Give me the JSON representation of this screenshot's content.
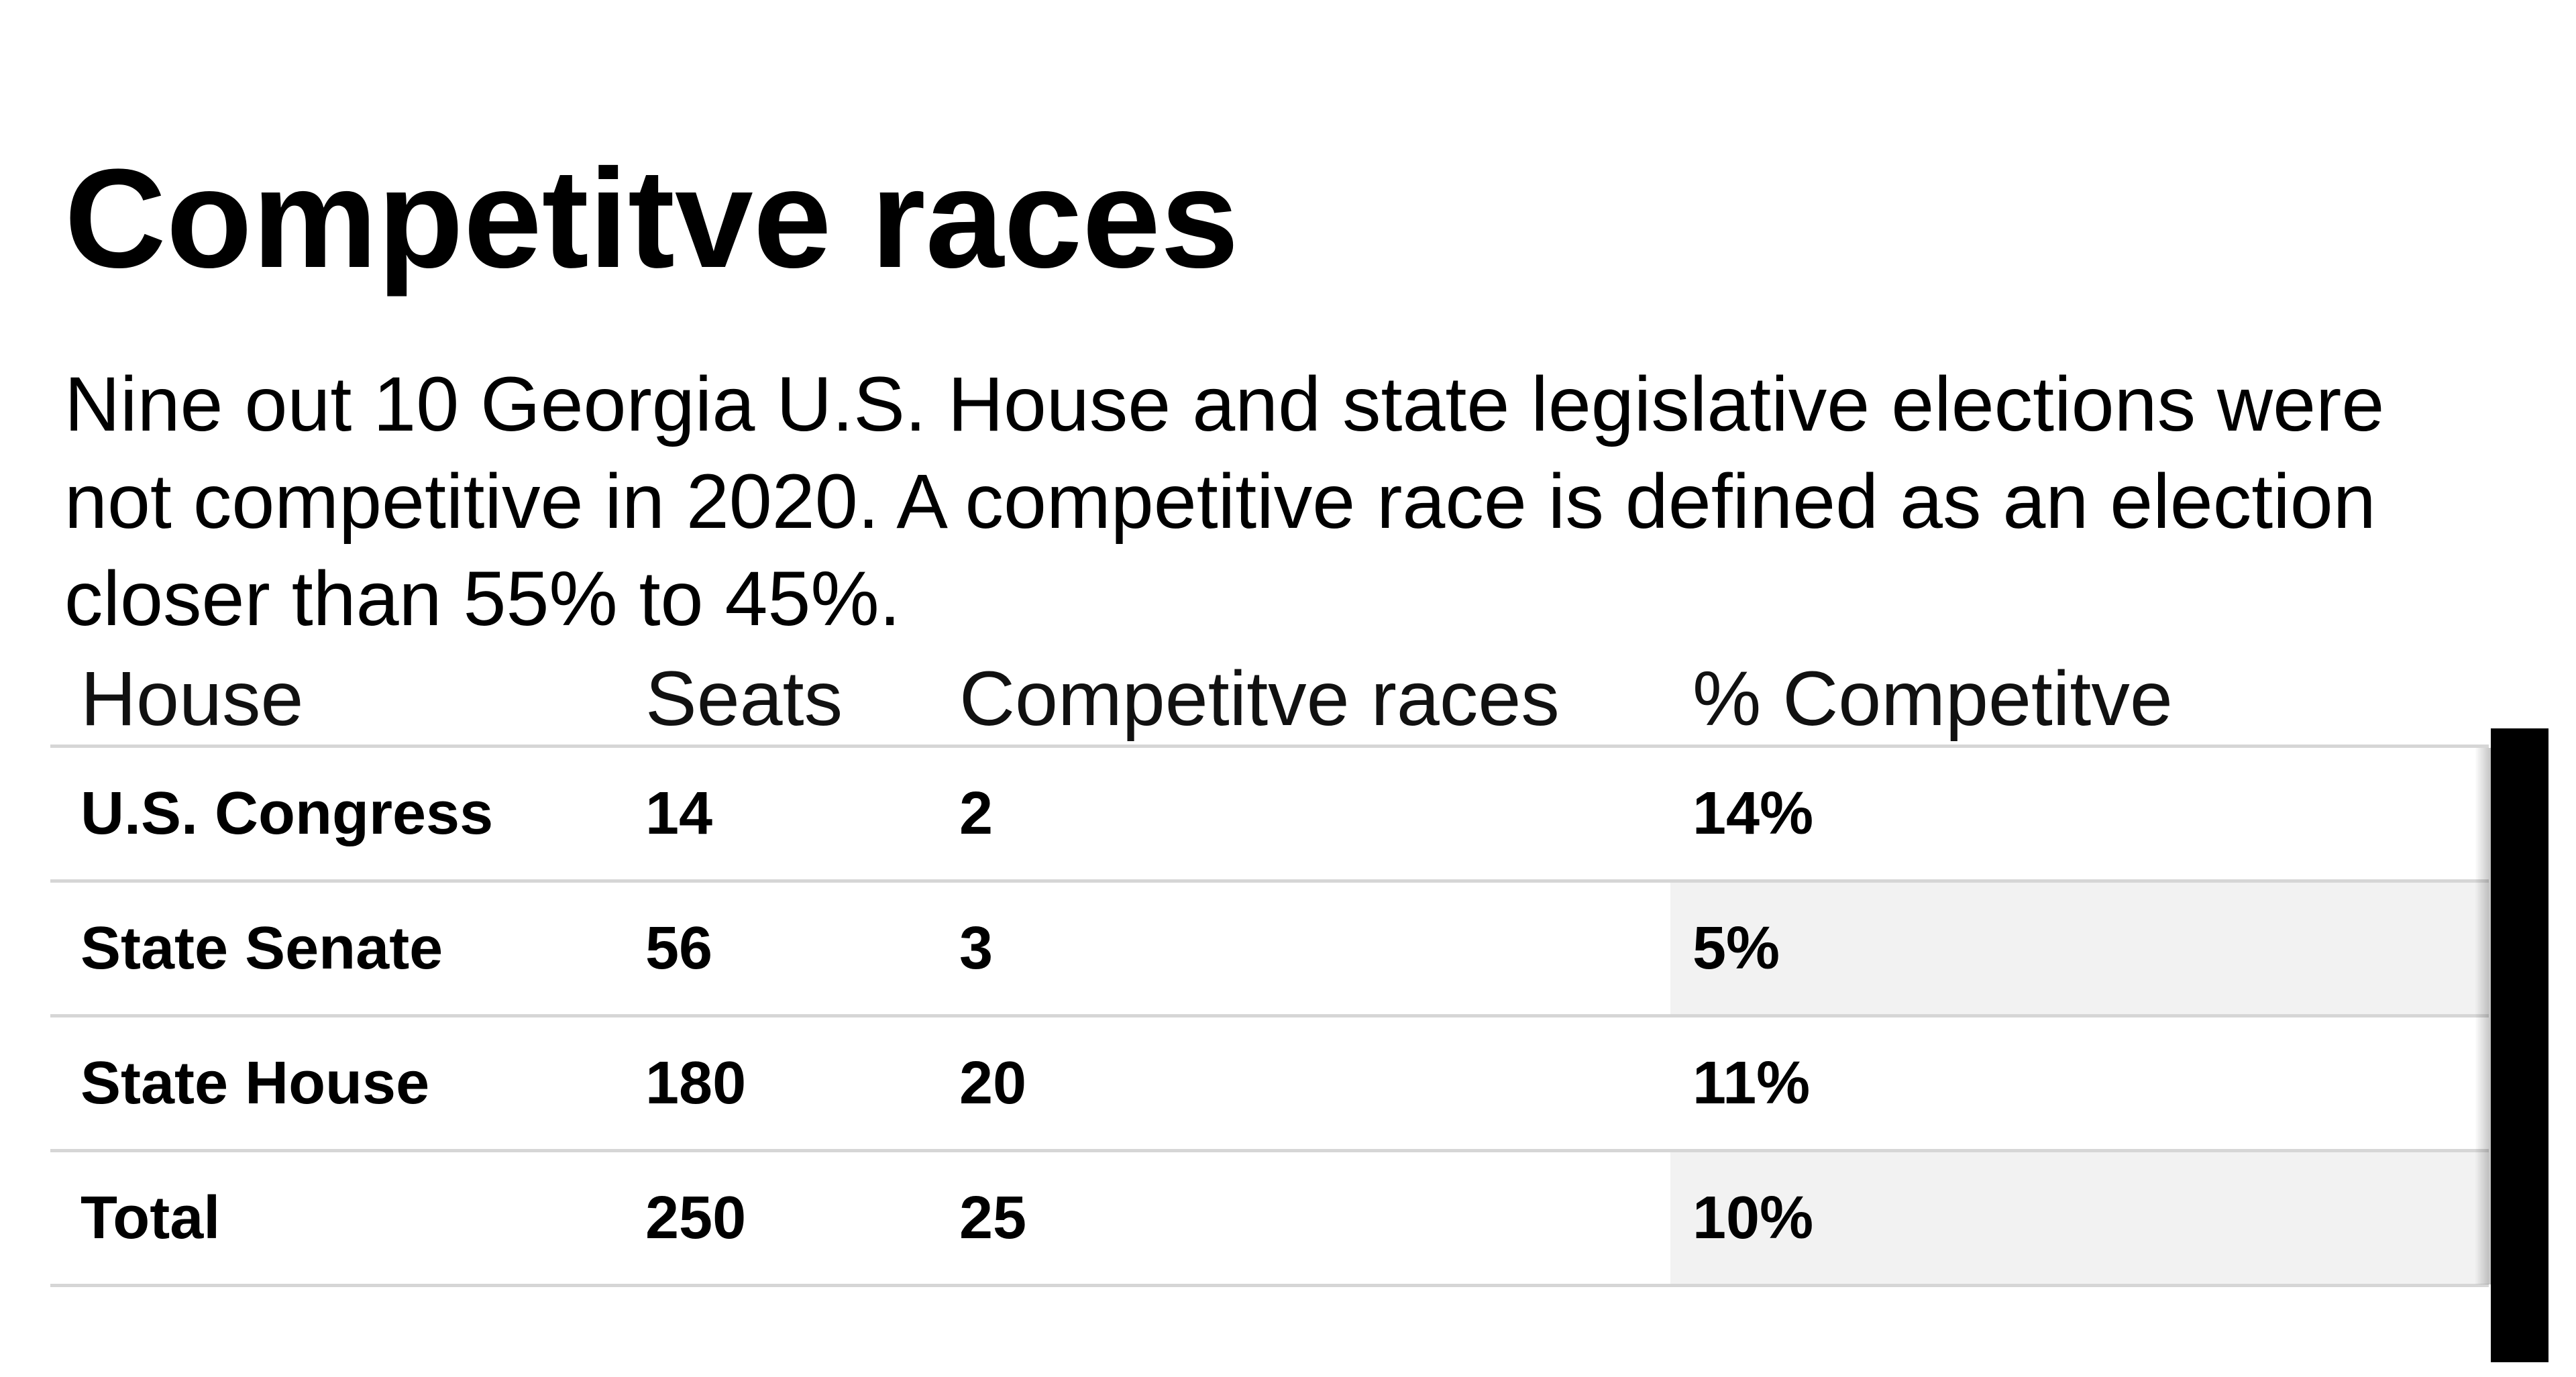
{
  "page": {
    "background": "#ffffff"
  },
  "title": "Competitve races",
  "subtitle": "Nine out 10 Georgia U.S. House and state legislative elections were\nnot competitive in 2020. A competitive race is defined as an election\ncloser than 55% to 45%.",
  "table": {
    "columns": [
      "House",
      "Seats",
      "Competitve races",
      "% Competitve"
    ],
    "rows": [
      {
        "house": "U.S. Congress",
        "seats": "14",
        "competitive_races": "2",
        "pct_competitive": "14%",
        "pct_cell_shaded": false
      },
      {
        "house": "State Senate",
        "seats": "56",
        "competitive_races": "3",
        "pct_competitive": "5%",
        "pct_cell_shaded": true
      },
      {
        "house": "State House",
        "seats": "180",
        "competitive_races": "20",
        "pct_competitive": "11%",
        "pct_cell_shaded": false
      },
      {
        "house": "Total",
        "seats": "250",
        "competitive_races": "25",
        "pct_competitive": "10%",
        "pct_cell_shaded": true
      }
    ]
  },
  "chart_data": {
    "type": "table",
    "title": "Competitve races",
    "subtitle": "Nine out 10 Georgia U.S. House and state legislative elections were not competitive in 2020. A competitive race is defined as an election closer than 55% to 45%.",
    "columns": [
      "House",
      "Seats",
      "Competitve races",
      "% Competitve"
    ],
    "rows": [
      [
        "U.S. Congress",
        14,
        2,
        "14%"
      ],
      [
        "State Senate",
        56,
        3,
        "5%"
      ],
      [
        "State House",
        180,
        20,
        "11%"
      ],
      [
        "Total",
        250,
        25,
        "10%"
      ]
    ],
    "shaded_pct_column_row_indices": [
      1,
      3
    ]
  },
  "colors": {
    "shaded_cell": "#f2f2f2",
    "row_line": "#d6d6d6",
    "black_bar": "#000000",
    "text": "#000000"
  }
}
